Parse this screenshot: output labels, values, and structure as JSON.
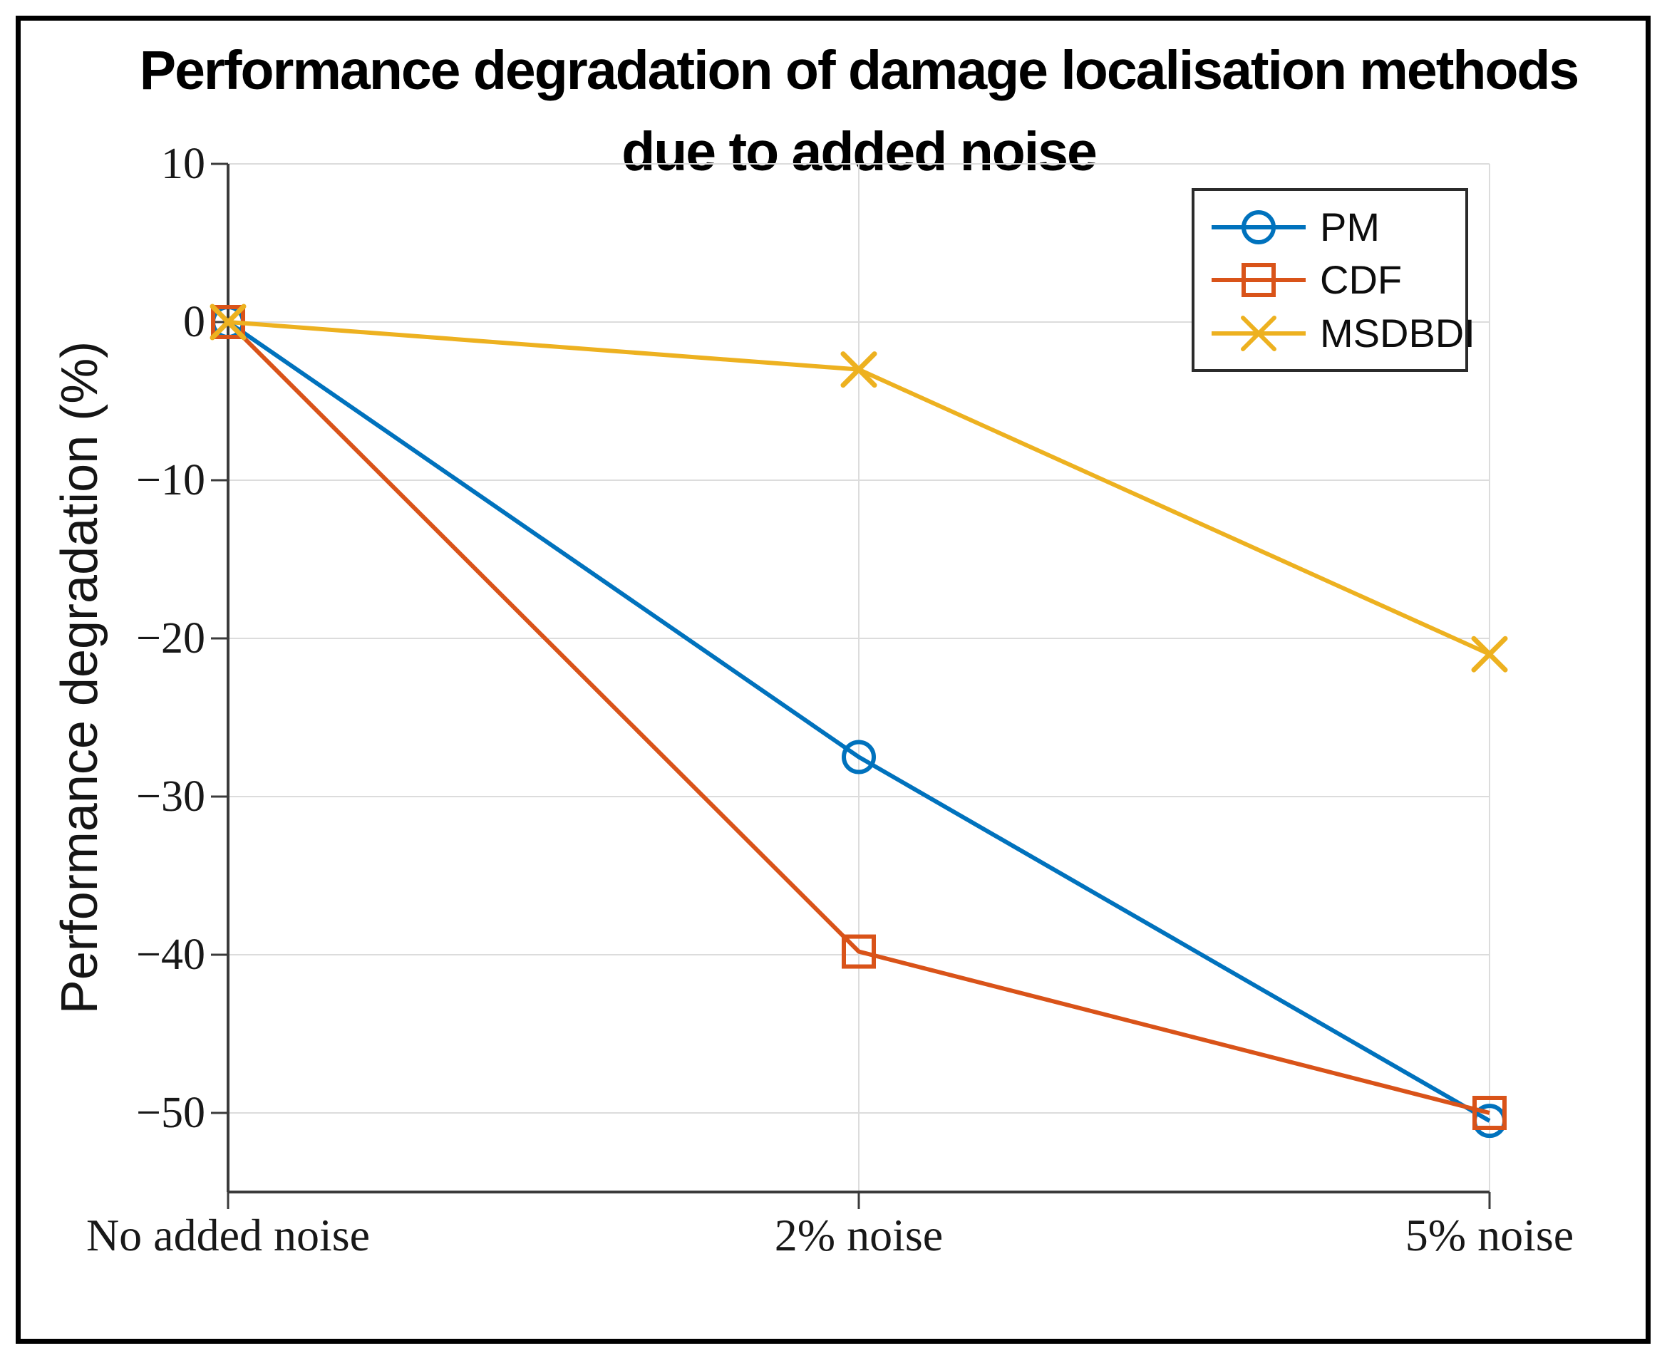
{
  "title": {
    "line1": "Performance degradation of damage localisation methods",
    "line2": "due to added noise"
  },
  "axes": {
    "ylabel": "Performance degradation (%)",
    "ylim": [
      -55,
      10
    ],
    "y_ticks": [
      {
        "value": 10,
        "label": "10"
      },
      {
        "value": 0,
        "label": "0"
      },
      {
        "value": -10,
        "label": "−10"
      },
      {
        "value": -20,
        "label": "−20"
      },
      {
        "value": -30,
        "label": "−30"
      },
      {
        "value": -40,
        "label": "−40"
      },
      {
        "value": -50,
        "label": "−50"
      }
    ],
    "x_categories": [
      "No added noise",
      "2% noise",
      "5% noise"
    ]
  },
  "legend": {
    "position": "upper right"
  },
  "style_colors": {
    "axis": "#3b3b3b",
    "grid": "#dcdcdc",
    "text": "#181818"
  },
  "chart_data": {
    "type": "line",
    "title": "Performance degradation of damage localisation methods due to added noise",
    "xlabel": "",
    "ylabel": "Performance degradation (%)",
    "categories": [
      "No added noise",
      "2% noise",
      "5% noise"
    ],
    "ylim": [
      -55,
      10
    ],
    "grid": true,
    "legend_position": "upper right",
    "series": [
      {
        "name": "PM",
        "color": "#0072BD",
        "marker": "circle",
        "values": [
          0,
          -27.5,
          -50.5
        ]
      },
      {
        "name": "CDF",
        "color": "#D95319",
        "marker": "square",
        "values": [
          0,
          -39.8,
          -50
        ]
      },
      {
        "name": "MSDBDI",
        "color": "#EDB120",
        "marker": "x",
        "values": [
          0,
          -3,
          -21
        ]
      }
    ]
  }
}
